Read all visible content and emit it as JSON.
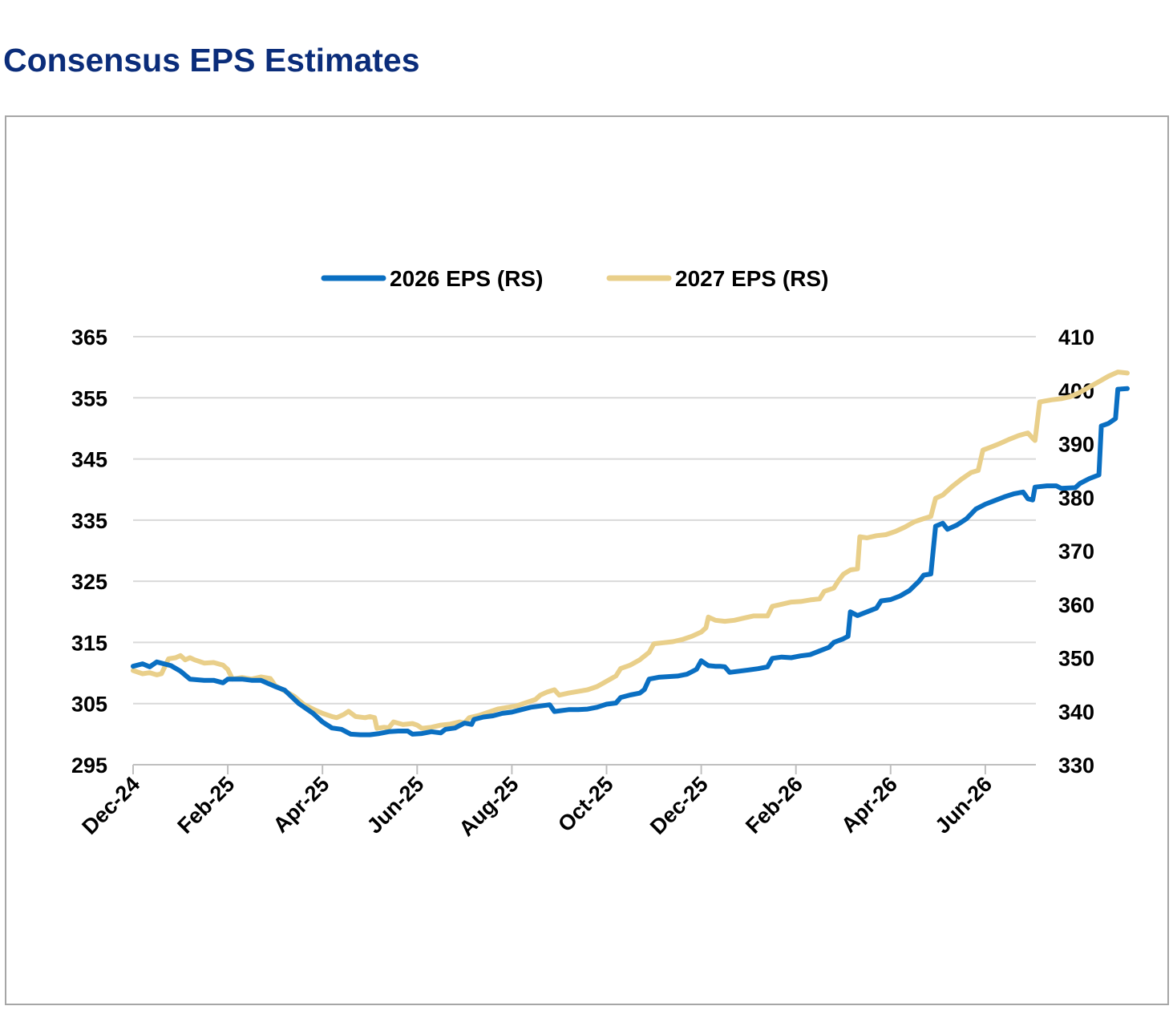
{
  "title": "Consensus EPS Estimates",
  "chart_data": {
    "type": "line",
    "title": "Consensus EPS Estimates",
    "xlabel": "",
    "ylabel": "",
    "x_tick_labels": [
      "Dec-24",
      "Feb-25",
      "Apr-25",
      "Jun-25",
      "Aug-25",
      "Oct-25",
      "Dec-25",
      "Feb-26",
      "Apr-26",
      "Jun-26"
    ],
    "y_left": {
      "ticks": [
        295,
        305,
        315,
        325,
        335,
        345,
        355,
        365
      ],
      "range": [
        295,
        365
      ]
    },
    "y_right": {
      "ticks": [
        330,
        340,
        350,
        360,
        370,
        380,
        390,
        400,
        410
      ],
      "range": [
        330,
        410
      ]
    },
    "grid": "horizontal",
    "legend_position": "top-center",
    "x_range_months": [
      0,
      19.2
    ],
    "series": [
      {
        "name": "2026 EPS (RS)",
        "axis": "left",
        "color": "#0a6fc2",
        "points": [
          [
            0,
            311.1
          ],
          [
            0.2,
            311.5
          ],
          [
            0.35,
            311.0
          ],
          [
            0.5,
            311.8
          ],
          [
            0.8,
            311.2
          ],
          [
            1.0,
            310.3
          ],
          [
            1.2,
            309.0
          ],
          [
            1.5,
            308.8
          ],
          [
            1.7,
            308.8
          ],
          [
            1.9,
            308.4
          ],
          [
            2.0,
            309.0
          ],
          [
            2.3,
            309.0
          ],
          [
            2.5,
            308.8
          ],
          [
            2.7,
            308.8
          ],
          [
            3.0,
            307.8
          ],
          [
            3.2,
            307.2
          ],
          [
            3.5,
            305.0
          ],
          [
            3.8,
            303.4
          ],
          [
            4.0,
            302.0
          ],
          [
            4.2,
            301.0
          ],
          [
            4.4,
            300.8
          ],
          [
            4.6,
            300.0
          ],
          [
            4.8,
            299.9
          ],
          [
            5.0,
            299.9
          ],
          [
            5.2,
            300.1
          ],
          [
            5.4,
            300.4
          ],
          [
            5.6,
            300.5
          ],
          [
            5.8,
            300.5
          ],
          [
            5.9,
            300.0
          ],
          [
            6.1,
            300.1
          ],
          [
            6.3,
            300.4
          ],
          [
            6.5,
            300.2
          ],
          [
            6.6,
            300.8
          ],
          [
            6.8,
            301.0
          ],
          [
            7.0,
            301.8
          ],
          [
            7.15,
            301.6
          ],
          [
            7.2,
            302.4
          ],
          [
            7.4,
            302.8
          ],
          [
            7.6,
            303.0
          ],
          [
            7.8,
            303.4
          ],
          [
            8.0,
            303.6
          ],
          [
            8.2,
            304.0
          ],
          [
            8.4,
            304.4
          ],
          [
            8.6,
            304.6
          ],
          [
            8.8,
            304.8
          ],
          [
            8.9,
            303.7
          ],
          [
            9.2,
            304.0
          ],
          [
            9.4,
            304.0
          ],
          [
            9.6,
            304.1
          ],
          [
            9.8,
            304.4
          ],
          [
            10.0,
            304.9
          ],
          [
            10.2,
            305.1
          ],
          [
            10.3,
            306.0
          ],
          [
            10.5,
            306.4
          ],
          [
            10.7,
            306.7
          ],
          [
            10.8,
            307.3
          ],
          [
            10.9,
            309.0
          ],
          [
            11.1,
            309.3
          ],
          [
            11.3,
            309.4
          ],
          [
            11.5,
            309.5
          ],
          [
            11.7,
            309.8
          ],
          [
            11.9,
            310.6
          ],
          [
            12.0,
            312.0
          ],
          [
            12.15,
            311.2
          ],
          [
            12.3,
            311.1
          ],
          [
            12.4,
            311.1
          ],
          [
            12.5,
            311.0
          ],
          [
            12.6,
            310.1
          ],
          [
            12.8,
            310.3
          ],
          [
            13.0,
            310.5
          ],
          [
            13.2,
            310.7
          ],
          [
            13.4,
            311.0
          ],
          [
            13.5,
            312.4
          ],
          [
            13.7,
            312.6
          ],
          [
            13.9,
            312.5
          ],
          [
            14.1,
            312.8
          ],
          [
            14.3,
            313.0
          ],
          [
            14.5,
            313.6
          ],
          [
            14.7,
            314.2
          ],
          [
            14.8,
            315.0
          ],
          [
            15.0,
            315.6
          ],
          [
            15.1,
            316.0
          ],
          [
            15.15,
            320.0
          ],
          [
            15.3,
            319.4
          ],
          [
            15.5,
            320.0
          ],
          [
            15.7,
            320.6
          ],
          [
            15.8,
            321.8
          ],
          [
            16.0,
            322.0
          ],
          [
            16.2,
            322.6
          ],
          [
            16.4,
            323.5
          ],
          [
            16.6,
            325.0
          ],
          [
            16.7,
            326.0
          ],
          [
            16.85,
            326.2
          ],
          [
            16.95,
            334.0
          ],
          [
            17.1,
            334.5
          ],
          [
            17.2,
            333.5
          ],
          [
            17.4,
            334.2
          ],
          [
            17.6,
            335.2
          ],
          [
            17.8,
            336.8
          ],
          [
            18.0,
            337.6
          ],
          [
            18.2,
            338.2
          ],
          [
            18.4,
            338.8
          ],
          [
            18.6,
            339.3
          ],
          [
            18.8,
            339.6
          ],
          [
            18.9,
            338.5
          ],
          [
            19.0,
            338.3
          ],
          [
            19.05,
            340.4
          ],
          [
            19.3,
            340.6
          ],
          [
            19.5,
            340.6
          ],
          [
            19.6,
            340.2
          ],
          [
            19.9,
            340.3
          ],
          [
            20.0,
            341.0
          ],
          [
            20.2,
            341.8
          ],
          [
            20.4,
            342.4
          ],
          [
            20.45,
            350.4
          ],
          [
            20.6,
            350.8
          ],
          [
            20.75,
            351.6
          ],
          [
            20.8,
            356.4
          ],
          [
            21.0,
            356.5
          ]
        ]
      },
      {
        "name": "2027 EPS (RS)",
        "axis": "right",
        "color": "#e9cf8a",
        "points": [
          [
            0,
            347.6
          ],
          [
            0.2,
            347.0
          ],
          [
            0.35,
            347.2
          ],
          [
            0.5,
            346.8
          ],
          [
            0.6,
            347.0
          ],
          [
            0.75,
            349.8
          ],
          [
            0.9,
            350.0
          ],
          [
            1.0,
            350.4
          ],
          [
            1.1,
            349.6
          ],
          [
            1.2,
            350.0
          ],
          [
            1.3,
            349.6
          ],
          [
            1.5,
            349.0
          ],
          [
            1.7,
            349.1
          ],
          [
            1.9,
            348.6
          ],
          [
            2.0,
            347.8
          ],
          [
            2.1,
            346.0
          ],
          [
            2.3,
            346.3
          ],
          [
            2.5,
            346.0
          ],
          [
            2.7,
            346.4
          ],
          [
            2.9,
            346.1
          ],
          [
            3.0,
            344.8
          ],
          [
            3.2,
            343.8
          ],
          [
            3.4,
            342.8
          ],
          [
            3.6,
            341.3
          ],
          [
            3.8,
            340.4
          ],
          [
            4.0,
            339.6
          ],
          [
            4.2,
            339.0
          ],
          [
            4.3,
            338.8
          ],
          [
            4.45,
            339.4
          ],
          [
            4.55,
            340.0
          ],
          [
            4.7,
            339.0
          ],
          [
            4.9,
            338.8
          ],
          [
            5.0,
            339.0
          ],
          [
            5.1,
            338.8
          ],
          [
            5.15,
            336.8
          ],
          [
            5.3,
            337.0
          ],
          [
            5.4,
            336.9
          ],
          [
            5.5,
            338.0
          ],
          [
            5.7,
            337.5
          ],
          [
            5.9,
            337.7
          ],
          [
            6.0,
            337.4
          ],
          [
            6.1,
            336.8
          ],
          [
            6.3,
            337.0
          ],
          [
            6.5,
            337.4
          ],
          [
            6.7,
            337.6
          ],
          [
            6.9,
            338.0
          ],
          [
            7.0,
            337.8
          ],
          [
            7.1,
            338.8
          ],
          [
            7.3,
            339.2
          ],
          [
            7.5,
            339.8
          ],
          [
            7.7,
            340.4
          ],
          [
            7.9,
            340.7
          ],
          [
            8.1,
            341.0
          ],
          [
            8.3,
            341.6
          ],
          [
            8.5,
            342.2
          ],
          [
            8.6,
            343.0
          ],
          [
            8.75,
            343.6
          ],
          [
            8.9,
            344.0
          ],
          [
            9.0,
            343.0
          ],
          [
            9.2,
            343.4
          ],
          [
            9.4,
            343.7
          ],
          [
            9.6,
            344.0
          ],
          [
            9.8,
            344.6
          ],
          [
            10.0,
            345.6
          ],
          [
            10.2,
            346.6
          ],
          [
            10.3,
            348.0
          ],
          [
            10.5,
            348.6
          ],
          [
            10.7,
            349.6
          ],
          [
            10.9,
            351.0
          ],
          [
            11.0,
            352.6
          ],
          [
            11.2,
            352.8
          ],
          [
            11.4,
            353.0
          ],
          [
            11.6,
            353.4
          ],
          [
            11.8,
            354.0
          ],
          [
            12.0,
            354.8
          ],
          [
            12.1,
            355.6
          ],
          [
            12.15,
            357.6
          ],
          [
            12.3,
            357.0
          ],
          [
            12.5,
            356.8
          ],
          [
            12.7,
            357.0
          ],
          [
            12.9,
            357.4
          ],
          [
            13.1,
            357.8
          ],
          [
            13.3,
            357.8
          ],
          [
            13.4,
            357.8
          ],
          [
            13.5,
            359.6
          ],
          [
            13.7,
            360.0
          ],
          [
            13.9,
            360.4
          ],
          [
            14.1,
            360.5
          ],
          [
            14.3,
            360.8
          ],
          [
            14.5,
            361.0
          ],
          [
            14.6,
            362.4
          ],
          [
            14.8,
            363.0
          ],
          [
            14.9,
            364.4
          ],
          [
            15.0,
            365.6
          ],
          [
            15.15,
            366.4
          ],
          [
            15.3,
            366.6
          ],
          [
            15.35,
            372.6
          ],
          [
            15.5,
            372.4
          ],
          [
            15.7,
            372.8
          ],
          [
            15.9,
            373.0
          ],
          [
            16.1,
            373.6
          ],
          [
            16.3,
            374.4
          ],
          [
            16.5,
            375.4
          ],
          [
            16.7,
            376.0
          ],
          [
            16.85,
            376.4
          ],
          [
            16.95,
            379.8
          ],
          [
            17.1,
            380.4
          ],
          [
            17.3,
            382.0
          ],
          [
            17.5,
            383.4
          ],
          [
            17.7,
            384.6
          ],
          [
            17.85,
            385.0
          ],
          [
            17.95,
            388.8
          ],
          [
            18.1,
            389.3
          ],
          [
            18.3,
            390.0
          ],
          [
            18.5,
            390.8
          ],
          [
            18.7,
            391.5
          ],
          [
            18.9,
            392.0
          ],
          [
            19.0,
            391.0
          ],
          [
            19.05,
            390.6
          ],
          [
            19.15,
            397.8
          ],
          [
            19.4,
            398.2
          ],
          [
            19.6,
            398.4
          ],
          [
            19.8,
            398.8
          ],
          [
            20.0,
            399.6
          ],
          [
            20.2,
            400.6
          ],
          [
            20.4,
            401.6
          ],
          [
            20.6,
            402.6
          ],
          [
            20.8,
            403.4
          ],
          [
            21.0,
            403.2
          ]
        ]
      }
    ]
  }
}
